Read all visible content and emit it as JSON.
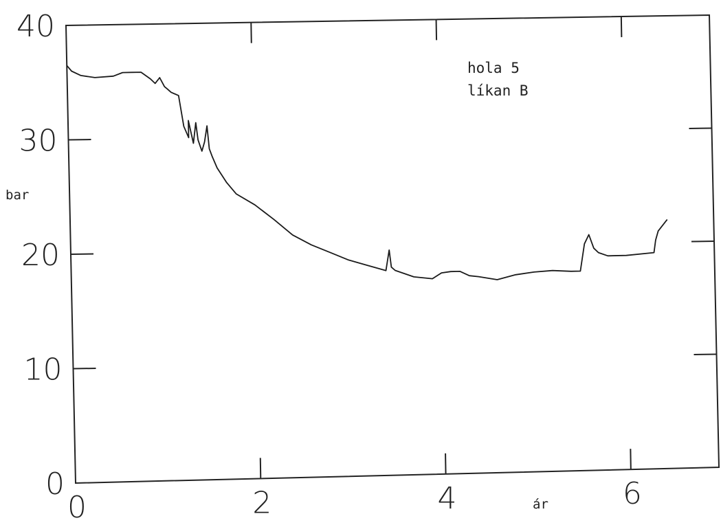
{
  "chart_data": {
    "type": "line",
    "title": "",
    "xlabel": "ár",
    "ylabel": "bar",
    "xlim": [
      0,
      6.5
    ],
    "ylim": [
      0,
      40
    ],
    "grid": false,
    "x_ticks": [
      "0",
      "2",
      "4",
      "6"
    ],
    "y_ticks": [
      "0",
      "10",
      "20",
      "30",
      "40"
    ],
    "annotation": [
      "hola 5",
      "líkan B"
    ],
    "series": [
      {
        "x": [
          0,
          0.05,
          0.15,
          0.3,
          0.5,
          0.6,
          0.7,
          0.8,
          0.9,
          0.95,
          1.0,
          1.05,
          1.08,
          1.12,
          1.2,
          1.25,
          1.3,
          1.3,
          1.35,
          1.38,
          1.4,
          1.42,
          1.44,
          1.47,
          1.5,
          1.52,
          1.55,
          1.6,
          1.7,
          1.8,
          2.0,
          2.2,
          2.4,
          2.6,
          2.8,
          3.0,
          3.2,
          3.4,
          3.44,
          3.46,
          3.5,
          3.7,
          3.9,
          4.0,
          4.1,
          4.2,
          4.3,
          4.4,
          4.6,
          4.8,
          5.0,
          5.2,
          5.4,
          5.5,
          5.55,
          5.6,
          5.65,
          5.7,
          5.8,
          6.0,
          6.3,
          6.32,
          6.35,
          6.45
        ],
        "y": [
          36.5,
          36.0,
          35.6,
          35.4,
          35.5,
          35.8,
          35.8,
          35.8,
          35.2,
          34.8,
          35.3,
          34.5,
          34.3,
          34.0,
          33.7,
          31.0,
          30.0,
          31.5,
          29.5,
          31.3,
          29.8,
          29.3,
          28.8,
          29.6,
          31.0,
          29.0,
          28.3,
          27.3,
          26.0,
          25.0,
          24.0,
          22.7,
          21.3,
          20.4,
          19.7,
          19.0,
          18.5,
          18.0,
          19.8,
          18.3,
          18.0,
          17.4,
          17.2,
          17.7,
          17.8,
          17.8,
          17.4,
          17.3,
          17.0,
          17.4,
          17.6,
          17.7,
          17.6,
          17.6,
          20.0,
          20.8,
          19.6,
          19.2,
          18.9,
          18.9,
          19.1,
          20.2,
          21.0,
          22.0
        ]
      }
    ]
  }
}
